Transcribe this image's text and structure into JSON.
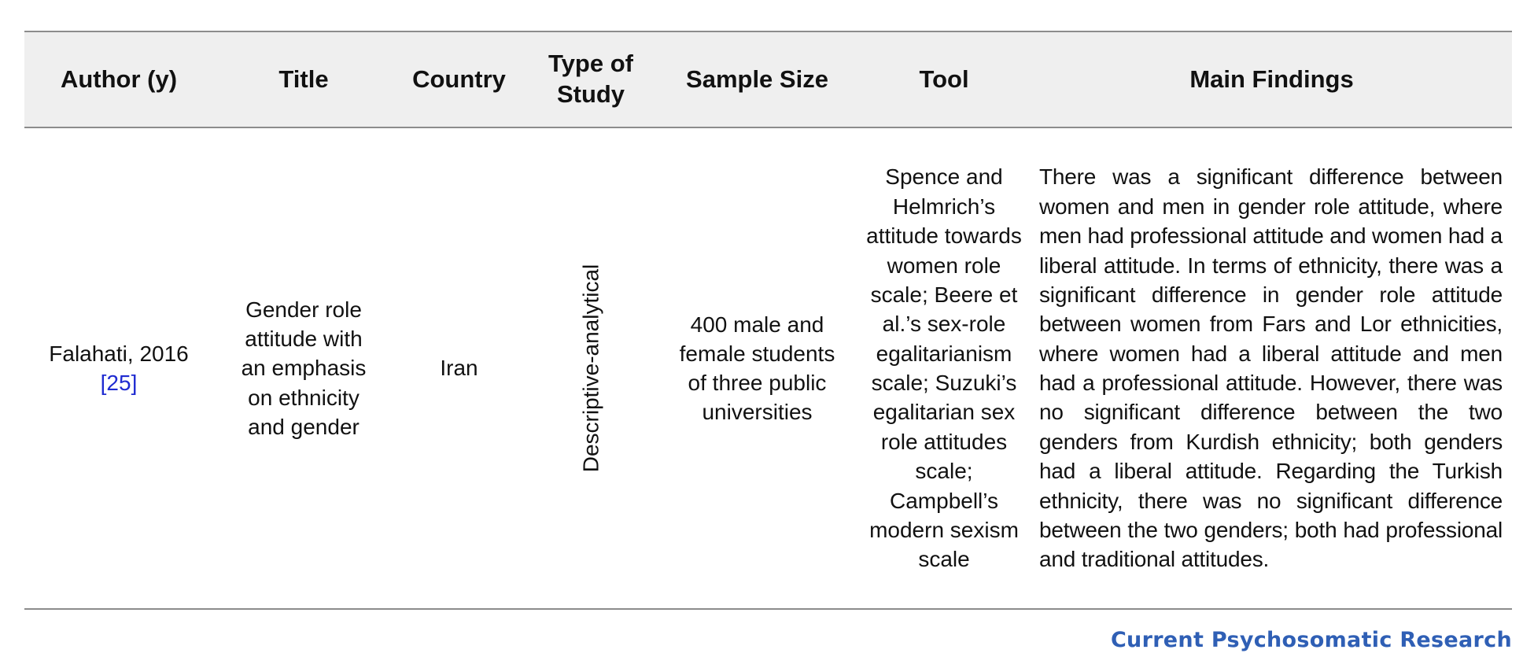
{
  "headers": [
    "Author (y)",
    "Title",
    "Country",
    "Type of Study",
    "Sample Size",
    "Tool",
    "Main Findings"
  ],
  "row": {
    "author": "Falahati, 2016",
    "reference": "[25]",
    "title": "Gender role attitude with an emphasis on ethnicity and gender",
    "country": "Iran",
    "study_type": "Descriptive-analytical",
    "sample_size": "400 male and female students of three public universities",
    "tool": "Spence and Helmrich’s attitude towards women role scale; Beere et al.’s sex-role egalitarianism scale; Suzuki’s egalitarian sex role attitudes scale; Campbell’s modern sexism scale",
    "findings": "There was a significant difference between women and men in gender role attitude, where men had professional attitude and women had a liberal attitude. In terms of ethnicity, there was a significant difference in gender role attitude between women from Fars and Lor ethnicities, where women had a liberal attitude and men had a professional attitude. However, there was no significant difference between the two genders from Kurdish ethnicity; both genders had a liberal attitude. Regarding the Turkish ethnicity, there was no significant difference between the two genders; both had professional and traditional attitudes."
  },
  "footer": {
    "journal": "Current Psychosomatic Research"
  },
  "colors": {
    "header_bg": "#efefef",
    "rule": "#8c8c8c",
    "reference_link": "#1f2bd1",
    "journal_logo": "#2f5fb5"
  }
}
